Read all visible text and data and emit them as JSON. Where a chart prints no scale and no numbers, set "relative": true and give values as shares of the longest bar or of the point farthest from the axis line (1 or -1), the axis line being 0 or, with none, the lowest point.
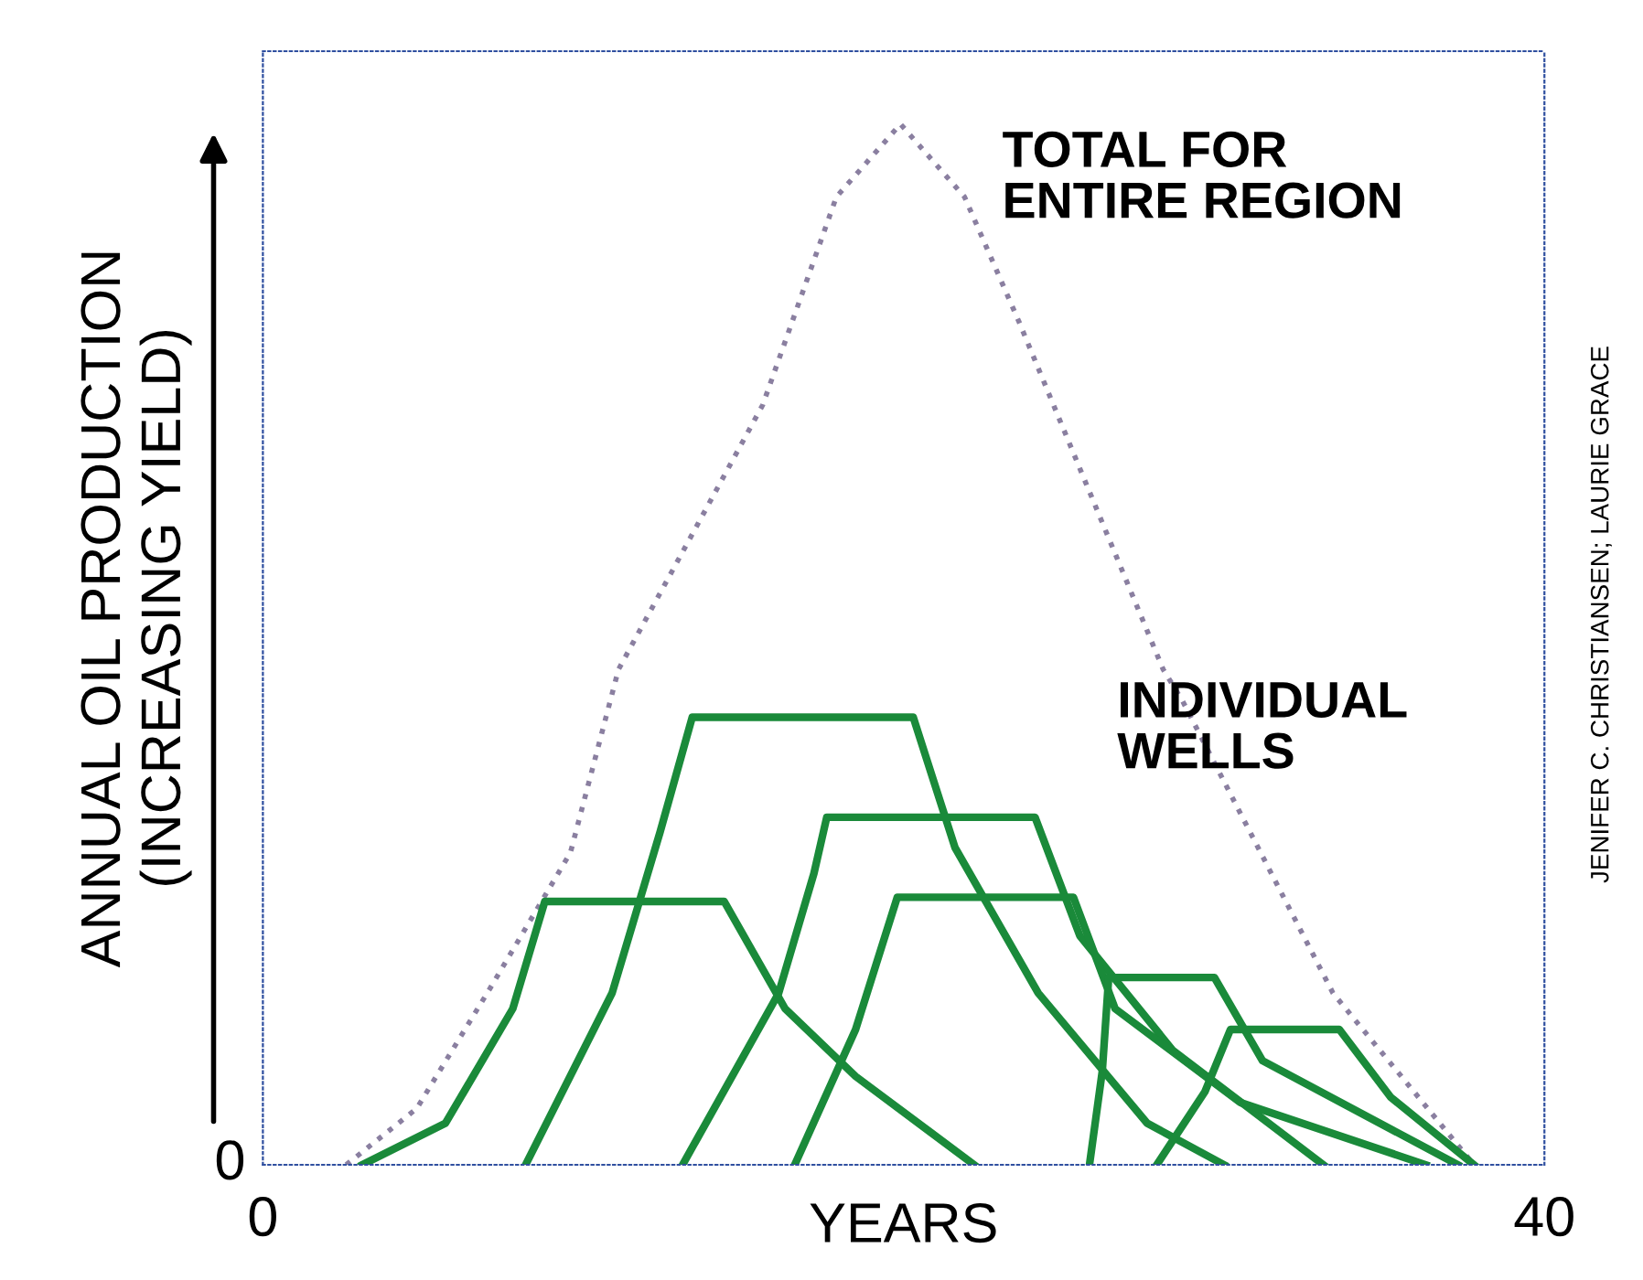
{
  "chart_data": {
    "type": "line",
    "relative": true,
    "xlabel": "YEARS",
    "ylabel": "ANNUAL OIL PRODUCTION\n(INCREASING YIELD)",
    "xlim": [
      0,
      40
    ],
    "xticks": [
      0,
      40
    ],
    "grid": false,
    "legend": false,
    "marker": "none",
    "annotations": [
      "TOTAL FOR\nENTIRE REGION",
      "INDIVIDUAL\nWELLS",
      "JENIFER C. CHRISTIANSEN; LAURIE GRACE",
      "0"
    ],
    "series": [
      {
        "color": "#8a7fa0",
        "line_style": "dotted",
        "x": [
          2.6,
          4.8,
          7.1,
          9.6,
          11.1,
          15.6,
          17.9,
          19.9,
          21.9,
          23.6,
          28.1,
          28.7,
          33.4,
          37.8
        ],
        "values": [
          0,
          0.054,
          0.17,
          0.3,
          0.476,
          0.73,
          0.93,
          1,
          0.93,
          0.81,
          0.476,
          0.446,
          0.165,
          0
        ]
      },
      {
        "color": "#1a8a3a",
        "line_style": "solid",
        "x": [
          3.1,
          5.7,
          7.8,
          8.8,
          14.4,
          16.3,
          18.5,
          22.2
        ],
        "values": [
          0,
          0.04,
          0.15,
          0.253,
          0.253,
          0.15,
          0.085,
          0
        ]
      },
      {
        "color": "#1a8a3a",
        "line_style": "solid",
        "x": [
          8.2,
          10.9,
          12.4,
          13.4,
          20.3,
          21.6,
          24.2,
          27.6,
          30
        ],
        "values": [
          0,
          0.165,
          0.32,
          0.43,
          0.43,
          0.305,
          0.165,
          0.04,
          0
        ]
      },
      {
        "color": "#1a8a3a",
        "line_style": "solid",
        "x": [
          13.1,
          16.1,
          17.2,
          17.6,
          24.1,
          25.5,
          28.4,
          33.1
        ],
        "values": [
          0,
          0.165,
          0.28,
          0.334,
          0.334,
          0.22,
          0.11,
          0
        ]
      },
      {
        "color": "#1a8a3a",
        "line_style": "solid",
        "x": [
          16.6,
          18.5,
          19.8,
          25.3,
          26.6,
          30.5,
          36.3
        ],
        "values": [
          0,
          0.13,
          0.257,
          0.257,
          0.15,
          0.06,
          0
        ]
      },
      {
        "color": "#1a8a3a",
        "line_style": "solid",
        "x": [
          25.8,
          26.2,
          26.4,
          29.7,
          31.2,
          37.3
        ],
        "values": [
          0,
          0.09,
          0.18,
          0.18,
          0.1,
          0
        ]
      },
      {
        "color": "#1a8a3a",
        "line_style": "solid",
        "x": [
          27.9,
          29.4,
          30.2,
          33.6,
          35.2,
          37.8
        ],
        "values": [
          0,
          0.07,
          0.13,
          0.13,
          0.065,
          0
        ]
      }
    ]
  }
}
